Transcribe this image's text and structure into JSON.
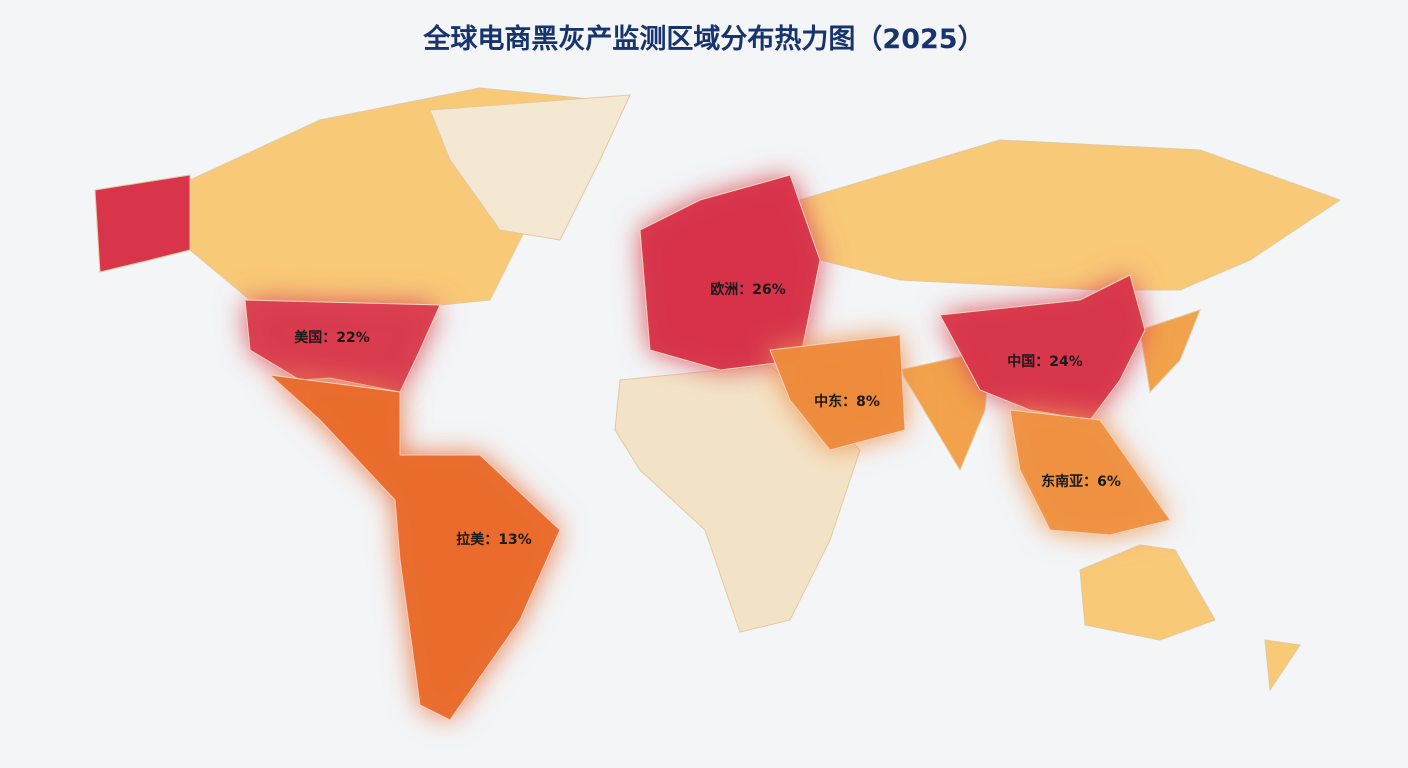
{
  "chart_data": {
    "type": "map",
    "title": "全球电商黑灰产监测区域分布热力图（2025）",
    "values": [
      26,
      22,
      24,
      13,
      8,
      6
    ],
    "value_labels": [
      "欧洲：26%",
      "美国：22%",
      "中国：24%",
      "拉美：13%",
      "中东：8%",
      "东南亚：6%"
    ],
    "colors": [
      "#d7334a",
      "#d93a4d",
      "#d8344a",
      "#ea6a2a",
      "#ee8a3a",
      "#ef9040"
    ]
  }
}
